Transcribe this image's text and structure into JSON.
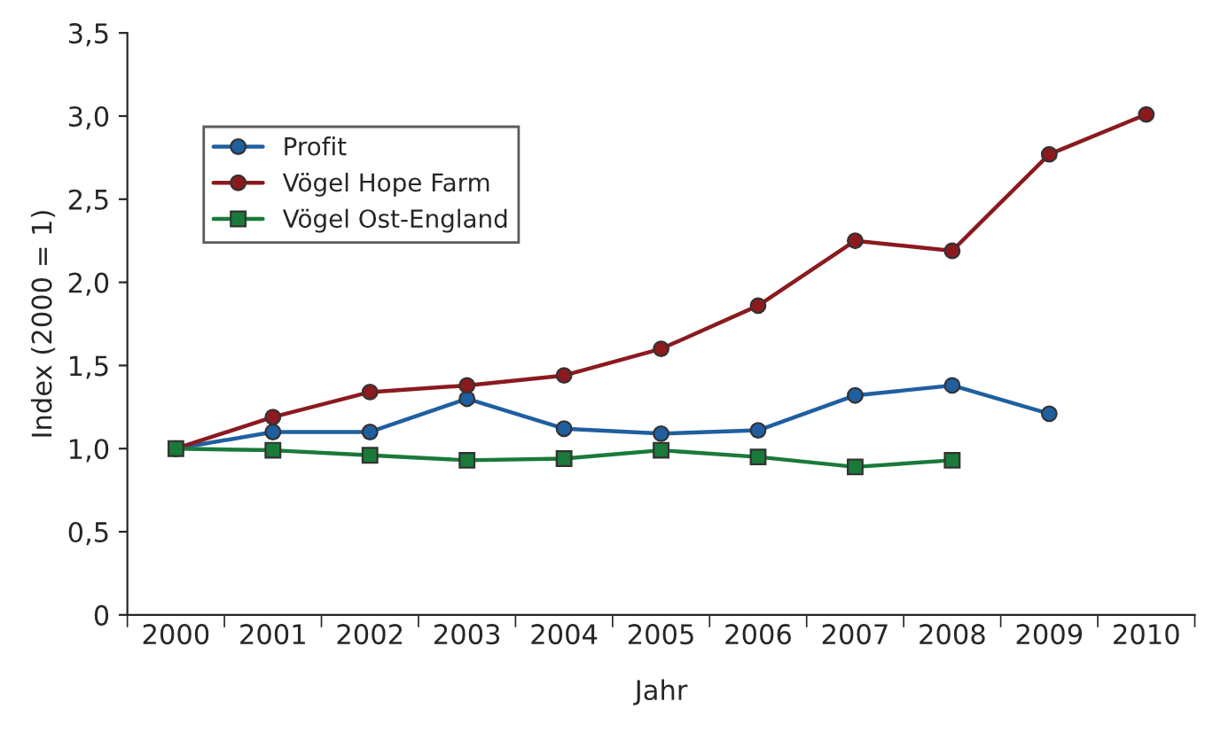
{
  "chart_data": {
    "type": "line",
    "xlabel": "Jahr",
    "ylabel": "Index (2000 = 1)",
    "categories": [
      "2000",
      "2001",
      "2002",
      "2003",
      "2004",
      "2005",
      "2006",
      "2007",
      "2008",
      "2009",
      "2010"
    ],
    "series": [
      {
        "name": "Profit",
        "color": "#1f5fa0",
        "marker": "circle",
        "values": [
          1.0,
          1.1,
          1.1,
          1.3,
          1.12,
          1.09,
          1.11,
          1.32,
          1.38,
          1.21,
          null
        ]
      },
      {
        "name": "Vögel Hope Farm",
        "color": "#8b1a1f",
        "marker": "circle",
        "values": [
          1.0,
          1.19,
          1.34,
          1.38,
          1.44,
          1.6,
          1.86,
          2.25,
          2.19,
          2.77,
          3.01
        ]
      },
      {
        "name": "Vögel Ost-England",
        "color": "#1a7a3a",
        "marker": "square",
        "values": [
          1.0,
          0.99,
          0.96,
          0.93,
          0.94,
          0.99,
          0.95,
          0.89,
          0.93,
          null,
          null
        ]
      }
    ],
    "ylim": [
      0,
      3.5
    ],
    "yticks": [
      {
        "value": 0,
        "label": "0"
      },
      {
        "value": 0.5,
        "label": "0,5"
      },
      {
        "value": 1,
        "label": "1,0"
      },
      {
        "value": 1.5,
        "label": "1,5"
      },
      {
        "value": 2,
        "label": "2,0"
      },
      {
        "value": 2.5,
        "label": "2,5"
      },
      {
        "value": 3,
        "label": "3,0"
      },
      {
        "value": 3.5,
        "label": "3,5"
      }
    ],
    "grid": false,
    "legend": "top left",
    "line_style": "solid"
  }
}
